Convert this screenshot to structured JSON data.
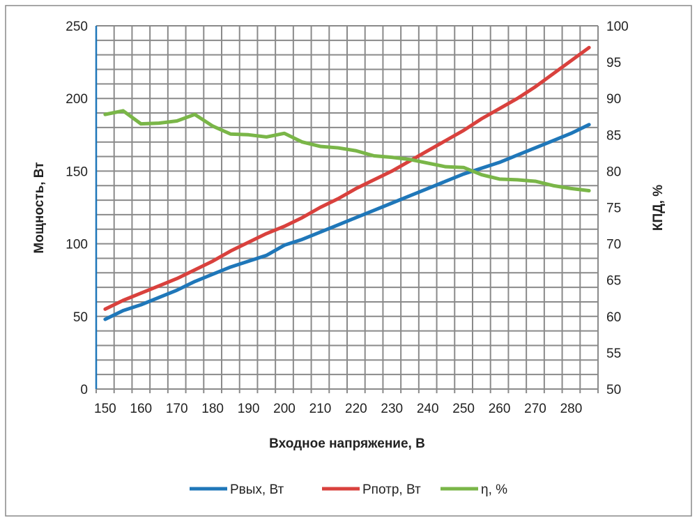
{
  "chart_data": {
    "type": "line",
    "xlabel": "Входное напряжение, В",
    "ylabel": "Мощность, Вт",
    "y2label": "КПД, %",
    "ylim": [
      0,
      250
    ],
    "y2lim": [
      50,
      100
    ],
    "yticks": [
      "0",
      "50",
      "100",
      "150",
      "200",
      "250"
    ],
    "y2ticks": [
      "50",
      "55",
      "60",
      "65",
      "70",
      "75",
      "80",
      "85",
      "90",
      "95",
      "100"
    ],
    "xticklabels": [
      "150",
      "160",
      "170",
      "180",
      "190",
      "200",
      "210",
      "220",
      "230",
      "240",
      "250",
      "260",
      "270",
      "280"
    ],
    "x": [
      150,
      155,
      160,
      165,
      170,
      175,
      180,
      185,
      190,
      195,
      200,
      205,
      210,
      215,
      220,
      225,
      230,
      235,
      240,
      245,
      250,
      255,
      260,
      265,
      270,
      275,
      280,
      285
    ],
    "grid": true,
    "legend_position": "bottom",
    "series": [
      {
        "name": "Pвых, Вт",
        "axis": "left",
        "color": "#1f77b9",
        "values": [
          48,
          54,
          58,
          63,
          68,
          74,
          79,
          84,
          88,
          92,
          99,
          103,
          108,
          113,
          118,
          123,
          128,
          133,
          138,
          143,
          148,
          152,
          156,
          161,
          166,
          171,
          176,
          182
        ]
      },
      {
        "name": "Pпотр, Вт",
        "axis": "left",
        "color": "#d9413d",
        "values": [
          55,
          61,
          66,
          71,
          76,
          82,
          88,
          95,
          101,
          107,
          112,
          118,
          125,
          131,
          138,
          144,
          150,
          157,
          164,
          171,
          178,
          186,
          193,
          200,
          208,
          217,
          226,
          235
        ]
      },
      {
        "name": "η, %",
        "axis": "right",
        "color": "#7ab648",
        "values": [
          87.8,
          88.3,
          86.5,
          86.6,
          86.9,
          87.8,
          86.2,
          85.1,
          85.0,
          84.7,
          85.2,
          84.0,
          83.4,
          83.2,
          82.8,
          82.1,
          81.9,
          81.6,
          81.1,
          80.6,
          80.5,
          79.5,
          78.9,
          78.8,
          78.6,
          78.0,
          77.6,
          77.3
        ]
      }
    ]
  }
}
